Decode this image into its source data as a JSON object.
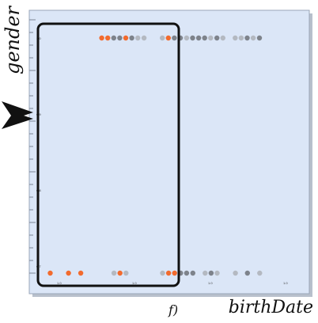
{
  "chart_data": {
    "type": "scatter",
    "xlabel": "birthDate",
    "ylabel": "gender",
    "panel_label": "f)",
    "y_tick_labels": [
      "1.0",
      "0.9",
      "0.8",
      "0.7"
    ],
    "x_tick_labels": [
      "1.0",
      "1.0",
      "1.0",
      "1.0"
    ],
    "colors": {
      "background": "#dbe6f7",
      "highlight": "#f26b2e",
      "grey_light": "#b4b9c1",
      "grey_dark": "#7e838b",
      "selection_box": "#111111"
    },
    "series": [
      {
        "name": "",
        "y": 1,
        "points": [
          {
            "x": 0.242,
            "c": "highlight"
          },
          {
            "x": 0.267,
            "c": "highlight"
          },
          {
            "x": 0.292,
            "c": "grey_dark"
          },
          {
            "x": 0.317,
            "c": "grey_dark"
          },
          {
            "x": 0.342,
            "c": "highlight"
          },
          {
            "x": 0.367,
            "c": "grey_dark"
          },
          {
            "x": 0.392,
            "c": "grey_light"
          },
          {
            "x": 0.418,
            "c": "grey_light"
          },
          {
            "x": 0.494,
            "c": "grey_light"
          },
          {
            "x": 0.519,
            "c": "highlight"
          },
          {
            "x": 0.544,
            "c": "grey_dark"
          },
          {
            "x": 0.569,
            "c": "grey_dark"
          },
          {
            "x": 0.595,
            "c": "grey_light"
          },
          {
            "x": 0.62,
            "c": "grey_dark"
          },
          {
            "x": 0.645,
            "c": "grey_dark"
          },
          {
            "x": 0.67,
            "c": "grey_dark"
          },
          {
            "x": 0.695,
            "c": "grey_light"
          },
          {
            "x": 0.721,
            "c": "grey_dark"
          },
          {
            "x": 0.746,
            "c": "grey_light"
          },
          {
            "x": 0.797,
            "c": "grey_light"
          },
          {
            "x": 0.822,
            "c": "grey_light"
          },
          {
            "x": 0.847,
            "c": "grey_dark"
          },
          {
            "x": 0.872,
            "c": "grey_light"
          },
          {
            "x": 0.898,
            "c": "grey_dark"
          }
        ]
      },
      {
        "name": "",
        "y": 0,
        "points": [
          {
            "x": 0.028,
            "c": "highlight"
          },
          {
            "x": 0.104,
            "c": "highlight"
          },
          {
            "x": 0.155,
            "c": "highlight"
          },
          {
            "x": 0.293,
            "c": "grey_light"
          },
          {
            "x": 0.318,
            "c": "highlight"
          },
          {
            "x": 0.343,
            "c": "grey_light"
          },
          {
            "x": 0.495,
            "c": "grey_light"
          },
          {
            "x": 0.52,
            "c": "highlight"
          },
          {
            "x": 0.545,
            "c": "highlight"
          },
          {
            "x": 0.57,
            "c": "grey_dark"
          },
          {
            "x": 0.595,
            "c": "grey_dark"
          },
          {
            "x": 0.621,
            "c": "grey_dark"
          },
          {
            "x": 0.672,
            "c": "grey_light"
          },
          {
            "x": 0.697,
            "c": "grey_dark"
          },
          {
            "x": 0.722,
            "c": "grey_light"
          },
          {
            "x": 0.798,
            "c": "grey_light"
          },
          {
            "x": 0.848,
            "c": "grey_dark"
          },
          {
            "x": 0.899,
            "c": "grey_light"
          }
        ]
      }
    ],
    "selection_x_range": [
      0.0,
      0.47
    ],
    "grid": false
  }
}
